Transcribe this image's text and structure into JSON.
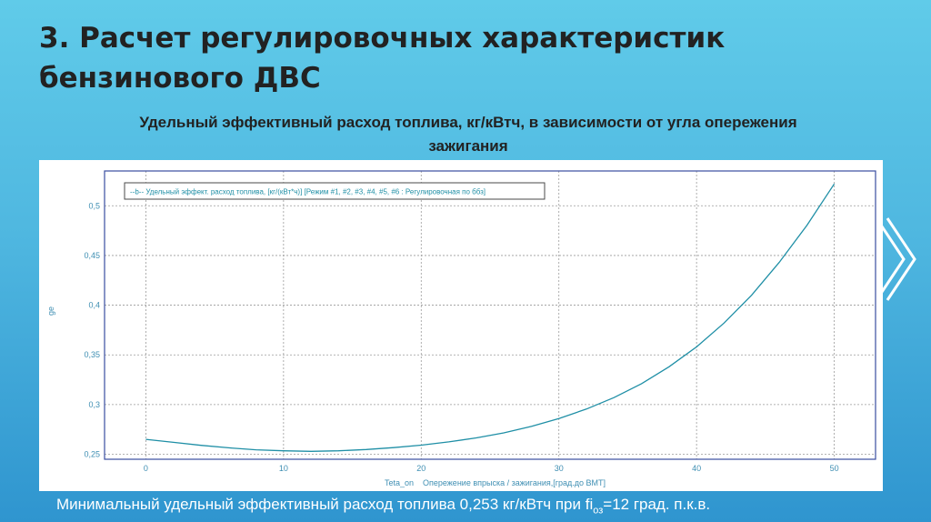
{
  "slide": {
    "title_line1": "3. Расчет регулировочных характеристик",
    "title_line2": "бензинового ДВС",
    "subtitle_line1": "Удельный эффективный расход топлива, кг/кВтч, в зависимости от угла опережения",
    "subtitle_line2": "зажигания",
    "footer_before": "Минимальный удельный эффективный расход топлива 0,253 кг/кВтч при fi",
    "footer_sub": "оз",
    "footer_after": "=12 град. п.к.в."
  },
  "colors": {
    "curve": "#1f8fa6",
    "axis_text": "#3f8fb3",
    "grid": "#9a9a9a",
    "frame": "#3a4ea0"
  },
  "chart_data": {
    "type": "line",
    "title": "",
    "ylabel": "ge",
    "xlabel_symbol": "Teta_on",
    "xlabel": "Опережение впрыска / зажигания,[град.до ВМТ]",
    "legend": "--b--  Удельный эффект. расход топлива, [кг/(кВт*ч)] [Режим #1, #2, #3, #4, #5, #6 : Регулировочная по ббз]",
    "legend_position": "top-left",
    "xlim": [
      -3,
      53
    ],
    "ylim": [
      0.245,
      0.535
    ],
    "xticks": [
      0,
      10,
      20,
      30,
      40,
      50
    ],
    "yticks": [
      0.25,
      0.3,
      0.35,
      0.4,
      0.45,
      0.5
    ],
    "xtick_labels": [
      "0",
      "10",
      "20",
      "30",
      "40",
      "50"
    ],
    "ytick_labels": [
      "0,25",
      "0,3",
      "0,35",
      "0,4",
      "0,45",
      "0,5"
    ],
    "grid": true,
    "series": [
      {
        "x": [
          0,
          2,
          4,
          6,
          8,
          10,
          12,
          14,
          16,
          18,
          20,
          22,
          24,
          26,
          28,
          30,
          32,
          34,
          36,
          38,
          40,
          42,
          44,
          46,
          48,
          50
        ],
        "values": [
          0.265,
          0.262,
          0.259,
          0.2565,
          0.2545,
          0.2535,
          0.253,
          0.2535,
          0.2548,
          0.2567,
          0.2592,
          0.2625,
          0.2665,
          0.2715,
          0.278,
          0.286,
          0.2955,
          0.307,
          0.321,
          0.338,
          0.358,
          0.382,
          0.41,
          0.443,
          0.48,
          0.522
        ]
      }
    ]
  }
}
